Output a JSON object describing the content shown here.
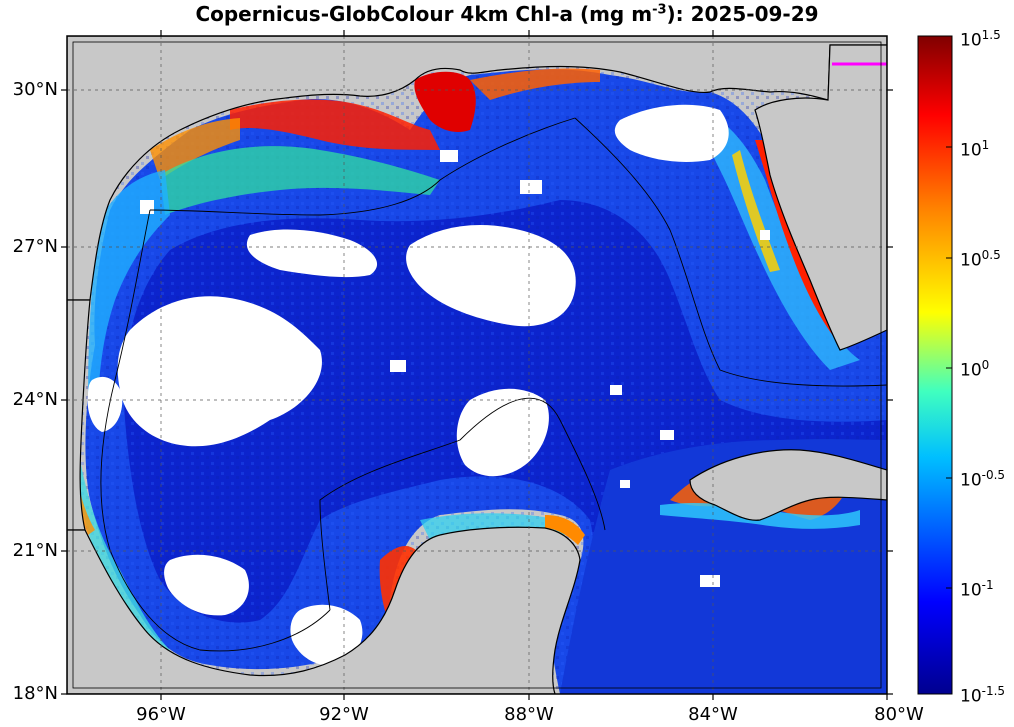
{
  "title": {
    "prefix": "Copernicus-GlobColour 4km Chl-a (mg m",
    "exp": "-3",
    "suffix": "): 2025-09-29"
  },
  "y_ticks": [
    "30°N",
    "27°N",
    "24°N",
    "21°N",
    "18°N"
  ],
  "x_ticks": [
    "96°W",
    "92°W",
    "88°W",
    "84°W",
    "80°W"
  ],
  "colorbar": {
    "labels": [
      {
        "base": "10",
        "exp": "1.5"
      },
      {
        "base": "10",
        "exp": "1"
      },
      {
        "base": "10",
        "exp": "0.5"
      },
      {
        "base": "10",
        "exp": "0"
      },
      {
        "base": "10",
        "exp": "-0.5"
      },
      {
        "base": "10",
        "exp": "-1"
      },
      {
        "base": "10",
        "exp": "-1.5"
      }
    ],
    "colormap": [
      "#00008f",
      "#0000ff",
      "#00bfff",
      "#40ffbf",
      "#ffff00",
      "#ff8000",
      "#ff0000",
      "#800000"
    ]
  },
  "colors": {
    "land": "#c8c8c8",
    "open_ocean": "#1040e0",
    "deep_blue": "#0a1fc0",
    "cloud_gap": "#ffffff",
    "marker": "#ff00ff"
  }
}
